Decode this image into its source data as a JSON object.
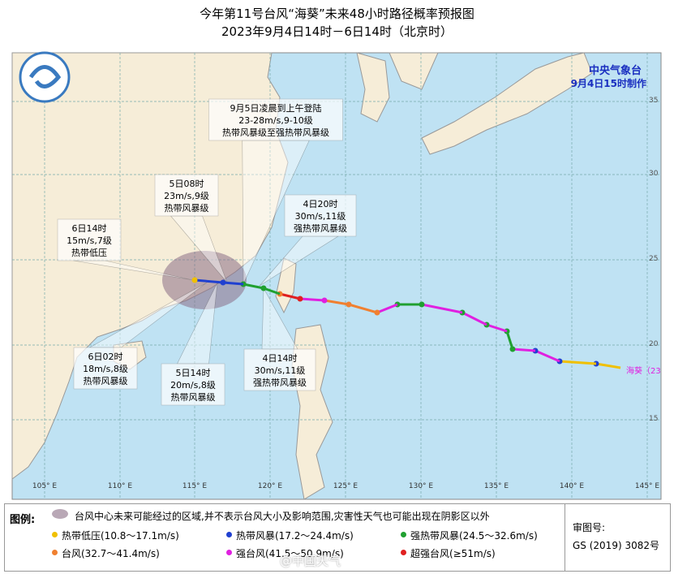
{
  "header": {
    "title": "今年第11号台风“海葵”未来48小时路径概率预报图",
    "subtitle": "2023年9月4日14时－6日14时（北京时）"
  },
  "agency": {
    "name": "中央气象台",
    "issued": "9月4日15时制作"
  },
  "callouts": [
    {
      "lines": [
        "9月5日凌晨到上午登陆",
        "23-28m/s,9-10级",
        "热带风暴级至强热带风暴级"
      ]
    },
    {
      "lines": [
        "5日08时",
        "23m/s,9级",
        "热带风暴级"
      ]
    },
    {
      "lines": [
        "4日20时",
        "30m/s,11级",
        "强热带风暴级"
      ]
    },
    {
      "lines": [
        "6日14时",
        "15m/s,7级",
        "热带低压"
      ]
    },
    {
      "lines": [
        "6日02时",
        "18m/s,8级",
        "热带风暴级"
      ]
    },
    {
      "lines": [
        "5日14时",
        "20m/s,8级",
        "热带风暴级"
      ]
    },
    {
      "lines": [
        "4日14时",
        "30m/s,11级",
        "强热带风暴级"
      ]
    }
  ],
  "storm_label": "海葵（23",
  "longitudes": [
    "105° E",
    "110° E",
    "115° E",
    "120° E",
    "125° E",
    "130° E",
    "135° E",
    "140° E",
    "145° E"
  ],
  "latitudes": [
    "35",
    "30",
    "25",
    "20",
    "15"
  ],
  "legend": {
    "heading": "图例:",
    "area_note": "台风中心未来可能经过的区域,并不表示台风大小及影响范围,灾害性天气也可能出现在阴影区以外",
    "items": [
      {
        "label": "热带低压(10.8～17.1m/s)",
        "color": "#f0c000"
      },
      {
        "label": "热带风暴(17.2～24.4m/s)",
        "color": "#2040d0"
      },
      {
        "label": "强热带风暴(24.5～32.6m/s)",
        "color": "#20a030"
      },
      {
        "label": "台风(32.7～41.4m/s)",
        "color": "#f08030"
      },
      {
        "label": "强台风(41.5～50.9m/s)",
        "color": "#e020e0"
      },
      {
        "label": "超强台风(≥51m/s)",
        "color": "#e02020"
      }
    ]
  },
  "approval": {
    "label": "审图号:",
    "number": "GS (2019) 3082号"
  },
  "watermark": "@中国天气"
}
